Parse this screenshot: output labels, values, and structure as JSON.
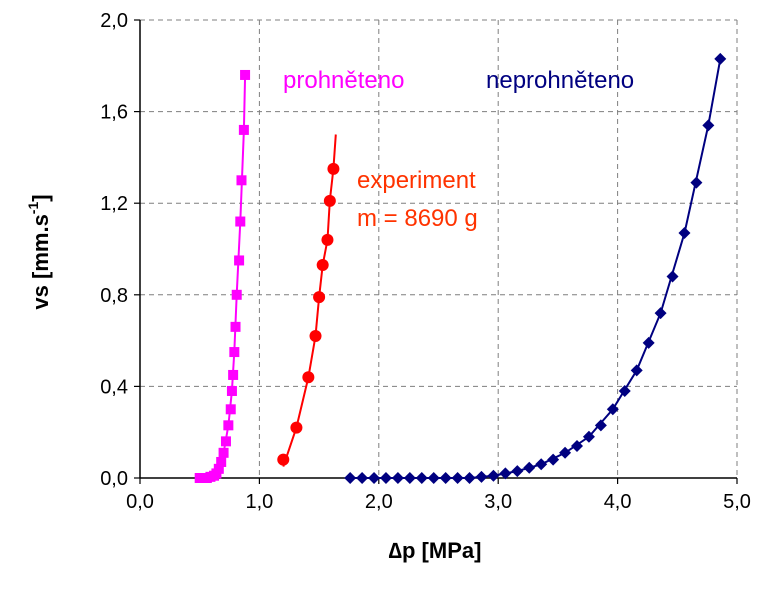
{
  "chart_data": {
    "type": "scatter",
    "xlabel_symbol": "∆",
    "xlabel_text": "p [MPa]",
    "ylabel_base": "vs [mm.s",
    "ylabel_sup": "-1",
    "ylabel_tail": "]",
    "xlim": [
      0,
      5
    ],
    "ylim": [
      0,
      2
    ],
    "x_ticks": [
      "0,0",
      "1,0",
      "2,0",
      "3,0",
      "4,0",
      "5,0"
    ],
    "x_tick_values": [
      0,
      1,
      2,
      3,
      4,
      5
    ],
    "y_ticks": [
      "0,0",
      "0,4",
      "0,8",
      "1,2",
      "1,6",
      "2,0"
    ],
    "y_tick_values": [
      0,
      0.4,
      0.8,
      1.2,
      1.6,
      2.0
    ],
    "grid": "dashed",
    "annotations": {
      "magenta": "prohněteno",
      "blue": "neprohněteno",
      "red_line1": "experiment",
      "red_line2": "m = 8690 g"
    },
    "series": [
      {
        "key": "magenta",
        "color": "#ff00ff",
        "marker": "square",
        "points": [
          [
            0.5,
            0.0
          ],
          [
            0.53,
            0.0
          ],
          [
            0.56,
            0.0
          ],
          [
            0.59,
            0.005
          ],
          [
            0.62,
            0.01
          ],
          [
            0.64,
            0.02
          ],
          [
            0.66,
            0.04
          ],
          [
            0.68,
            0.07
          ],
          [
            0.7,
            0.11
          ],
          [
            0.72,
            0.16
          ],
          [
            0.74,
            0.23
          ],
          [
            0.76,
            0.3
          ],
          [
            0.77,
            0.38
          ],
          [
            0.78,
            0.45
          ],
          [
            0.79,
            0.55
          ],
          [
            0.8,
            0.66
          ],
          [
            0.81,
            0.8
          ],
          [
            0.83,
            0.95
          ],
          [
            0.84,
            1.12
          ],
          [
            0.85,
            1.3
          ],
          [
            0.87,
            1.52
          ],
          [
            0.88,
            1.76
          ]
        ],
        "curve": [
          [
            0.5,
            0.0
          ],
          [
            0.6,
            0.005
          ],
          [
            0.66,
            0.04
          ],
          [
            0.7,
            0.11
          ],
          [
            0.74,
            0.23
          ],
          [
            0.77,
            0.38
          ],
          [
            0.79,
            0.55
          ],
          [
            0.81,
            0.8
          ],
          [
            0.84,
            1.12
          ],
          [
            0.87,
            1.52
          ],
          [
            0.88,
            1.76
          ]
        ]
      },
      {
        "key": "red",
        "color": "#ff0000",
        "marker": "circle",
        "points": [
          [
            1.2,
            0.08
          ],
          [
            1.31,
            0.22
          ],
          [
            1.41,
            0.44
          ],
          [
            1.47,
            0.62
          ],
          [
            1.5,
            0.79
          ],
          [
            1.53,
            0.93
          ],
          [
            1.57,
            1.04
          ],
          [
            1.59,
            1.21
          ],
          [
            1.62,
            1.35
          ]
        ],
        "curve": [
          [
            1.2,
            0.05
          ],
          [
            1.31,
            0.22
          ],
          [
            1.41,
            0.44
          ],
          [
            1.47,
            0.62
          ],
          [
            1.5,
            0.79
          ],
          [
            1.53,
            0.93
          ],
          [
            1.57,
            1.04
          ],
          [
            1.59,
            1.21
          ],
          [
            1.62,
            1.35
          ],
          [
            1.64,
            1.5
          ]
        ]
      },
      {
        "key": "blue",
        "color": "#000080",
        "marker": "diamond",
        "points": [
          [
            1.76,
            0.0
          ],
          [
            1.86,
            0.0
          ],
          [
            1.96,
            0.0
          ],
          [
            2.06,
            0.0
          ],
          [
            2.16,
            0.0
          ],
          [
            2.26,
            0.0
          ],
          [
            2.36,
            0.0
          ],
          [
            2.46,
            0.0
          ],
          [
            2.56,
            0.0
          ],
          [
            2.66,
            0.0
          ],
          [
            2.76,
            0.0
          ],
          [
            2.86,
            0.005
          ],
          [
            2.96,
            0.01
          ],
          [
            3.06,
            0.02
          ],
          [
            3.16,
            0.03
          ],
          [
            3.26,
            0.045
          ],
          [
            3.36,
            0.06
          ],
          [
            3.46,
            0.08
          ],
          [
            3.56,
            0.11
          ],
          [
            3.66,
            0.14
          ],
          [
            3.76,
            0.18
          ],
          [
            3.86,
            0.23
          ],
          [
            3.96,
            0.3
          ],
          [
            4.06,
            0.38
          ],
          [
            4.16,
            0.47
          ],
          [
            4.26,
            0.59
          ],
          [
            4.36,
            0.72
          ],
          [
            4.46,
            0.88
          ],
          [
            4.56,
            1.07
          ],
          [
            4.66,
            1.29
          ],
          [
            4.76,
            1.54
          ],
          [
            4.86,
            1.83
          ]
        ],
        "curve": [
          [
            1.76,
            0.0
          ],
          [
            2.76,
            0.0
          ],
          [
            2.96,
            0.01
          ],
          [
            3.16,
            0.03
          ],
          [
            3.36,
            0.06
          ],
          [
            3.56,
            0.11
          ],
          [
            3.76,
            0.18
          ],
          [
            3.96,
            0.3
          ],
          [
            4.16,
            0.47
          ],
          [
            4.36,
            0.72
          ],
          [
            4.56,
            1.07
          ],
          [
            4.76,
            1.54
          ],
          [
            4.86,
            1.83
          ]
        ]
      }
    ]
  }
}
